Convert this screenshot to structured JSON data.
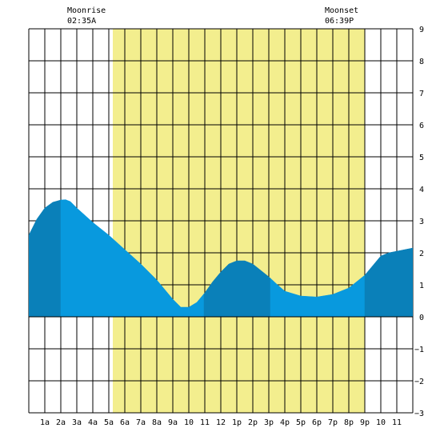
{
  "annotations": {
    "moonrise": {
      "label": "Moonrise",
      "time": "02:35A",
      "hour": 2.58
    },
    "moonset": {
      "label": "Moonset",
      "time": "06:39P",
      "hour": 18.65
    }
  },
  "chart_data": {
    "type": "area",
    "title": "",
    "xlabel": "",
    "ylabel": "",
    "xlim": [
      0,
      24
    ],
    "ylim": [
      -3,
      9
    ],
    "grid": true,
    "daylight": {
      "start_hour": 5.25,
      "end_hour": 21.0
    },
    "x_ticks": [
      {
        "hour": 1,
        "label": "1a"
      },
      {
        "hour": 2,
        "label": "2a"
      },
      {
        "hour": 3,
        "label": "3a"
      },
      {
        "hour": 4,
        "label": "4a"
      },
      {
        "hour": 5,
        "label": "5a"
      },
      {
        "hour": 6,
        "label": "6a"
      },
      {
        "hour": 7,
        "label": "7a"
      },
      {
        "hour": 8,
        "label": "8a"
      },
      {
        "hour": 9,
        "label": "9a"
      },
      {
        "hour": 10,
        "label": "10"
      },
      {
        "hour": 11,
        "label": "11"
      },
      {
        "hour": 12,
        "label": "12"
      },
      {
        "hour": 13,
        "label": "1p"
      },
      {
        "hour": 14,
        "label": "2p"
      },
      {
        "hour": 15,
        "label": "3p"
      },
      {
        "hour": 16,
        "label": "4p"
      },
      {
        "hour": 17,
        "label": "5p"
      },
      {
        "hour": 18,
        "label": "6p"
      },
      {
        "hour": 19,
        "label": "7p"
      },
      {
        "hour": 20,
        "label": "8p"
      },
      {
        "hour": 21,
        "label": "9p"
      },
      {
        "hour": 22,
        "label": "10"
      },
      {
        "hour": 23,
        "label": "11"
      }
    ],
    "y_ticks": [
      9,
      8,
      7,
      6,
      5,
      4,
      3,
      2,
      1,
      0,
      -1,
      -2,
      -3
    ],
    "series": [
      {
        "x": [
          0,
          0.5,
          1,
          1.5,
          2,
          2.3,
          2.6,
          3,
          4,
          5,
          6,
          7,
          8,
          9,
          9.5,
          10,
          10.5,
          11,
          11.5,
          12,
          12.5,
          13,
          13.5,
          14,
          14.5,
          15,
          15.5,
          16,
          17,
          18,
          19,
          20,
          21,
          21.5,
          22,
          22.5,
          23,
          23.5,
          24
        ],
        "values": [
          2.55,
          3.05,
          3.4,
          3.58,
          3.65,
          3.66,
          3.6,
          3.4,
          2.95,
          2.55,
          2.1,
          1.65,
          1.15,
          0.55,
          0.3,
          0.3,
          0.45,
          0.75,
          1.1,
          1.4,
          1.65,
          1.75,
          1.75,
          1.65,
          1.45,
          1.25,
          1.02,
          0.8,
          0.65,
          0.62,
          0.7,
          0.9,
          1.3,
          1.6,
          1.9,
          2.0,
          2.05,
          2.1,
          2.15
        ]
      }
    ],
    "bands": [
      {
        "start_hour": 0,
        "end_hour": 2.0,
        "shade": "dark"
      },
      {
        "start_hour": 2.0,
        "end_hour": 10.95,
        "shade": "light"
      },
      {
        "start_hour": 10.95,
        "end_hour": 15.1,
        "shade": "dark"
      },
      {
        "start_hour": 15.1,
        "end_hour": 21.0,
        "shade": "light"
      },
      {
        "start_hour": 21.0,
        "end_hour": 24,
        "shade": "dark"
      }
    ]
  },
  "colors": {
    "daylight": "#f3ee8e",
    "grid": "#000000",
    "area_light": "#0899de",
    "area_dark": "#0a80b9"
  }
}
